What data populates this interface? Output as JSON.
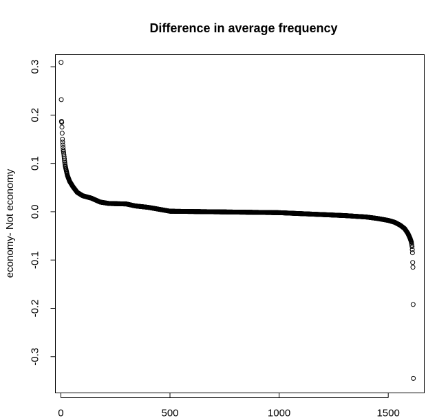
{
  "chart_data": {
    "type": "scatter",
    "title": "Difference in average frequency",
    "xlabel": "",
    "ylabel": "economy- Not economy",
    "xlim": [
      -25,
      1665
    ],
    "ylim": [
      -0.375,
      0.325
    ],
    "x_ticks": [
      0,
      500,
      1000,
      1500
    ],
    "x_tick_labels": [
      "0",
      "500",
      "1000",
      "1500"
    ],
    "y_ticks": [
      -0.3,
      -0.2,
      -0.1,
      0.0,
      0.1,
      0.2,
      0.3
    ],
    "y_tick_labels": [
      "-0.3",
      "-0.2",
      "-0.1",
      "0.0",
      "0.1",
      "0.2",
      "0.3"
    ],
    "grid": false,
    "legend": "none",
    "marker": "open-circle",
    "color": "#000000",
    "n_points": 1615,
    "notable_points": [
      {
        "x": 1,
        "y": 0.309
      },
      {
        "x": 2,
        "y": 0.232
      },
      {
        "x": 3,
        "y": 0.187
      },
      {
        "x": 4,
        "y": 0.185
      },
      {
        "x": 5,
        "y": 0.175
      },
      {
        "x": 1612,
        "y": -0.105
      },
      {
        "x": 1613,
        "y": -0.115
      },
      {
        "x": 1614,
        "y": -0.192
      },
      {
        "x": 1615,
        "y": -0.345
      }
    ],
    "curve": [
      {
        "x": 1,
        "y": 0.309
      },
      {
        "x": 2,
        "y": 0.232
      },
      {
        "x": 3,
        "y": 0.187
      },
      {
        "x": 4,
        "y": 0.185
      },
      {
        "x": 5,
        "y": 0.175
      },
      {
        "x": 7,
        "y": 0.15
      },
      {
        "x": 9,
        "y": 0.138
      },
      {
        "x": 11,
        "y": 0.128
      },
      {
        "x": 14,
        "y": 0.118
      },
      {
        "x": 17,
        "y": 0.105
      },
      {
        "x": 20,
        "y": 0.095
      },
      {
        "x": 25,
        "y": 0.085
      },
      {
        "x": 30,
        "y": 0.075
      },
      {
        "x": 40,
        "y": 0.063
      },
      {
        "x": 55,
        "y": 0.052
      },
      {
        "x": 75,
        "y": 0.04
      },
      {
        "x": 100,
        "y": 0.033
      },
      {
        "x": 140,
        "y": 0.028
      },
      {
        "x": 180,
        "y": 0.02
      },
      {
        "x": 220,
        "y": 0.017
      },
      {
        "x": 300,
        "y": 0.016
      },
      {
        "x": 340,
        "y": 0.012
      },
      {
        "x": 400,
        "y": 0.009
      },
      {
        "x": 450,
        "y": 0.005
      },
      {
        "x": 500,
        "y": 0.001
      },
      {
        "x": 1000,
        "y": -0.002
      },
      {
        "x": 1100,
        "y": -0.004
      },
      {
        "x": 1200,
        "y": -0.006
      },
      {
        "x": 1300,
        "y": -0.008
      },
      {
        "x": 1400,
        "y": -0.011
      },
      {
        "x": 1450,
        "y": -0.014
      },
      {
        "x": 1500,
        "y": -0.018
      },
      {
        "x": 1530,
        "y": -0.022
      },
      {
        "x": 1555,
        "y": -0.028
      },
      {
        "x": 1575,
        "y": -0.035
      },
      {
        "x": 1590,
        "y": -0.045
      },
      {
        "x": 1600,
        "y": -0.055
      },
      {
        "x": 1606,
        "y": -0.063
      },
      {
        "x": 1609,
        "y": -0.072
      },
      {
        "x": 1611,
        "y": -0.085
      },
      {
        "x": 1612,
        "y": -0.105
      },
      {
        "x": 1613,
        "y": -0.115
      },
      {
        "x": 1614,
        "y": -0.192
      },
      {
        "x": 1615,
        "y": -0.345
      }
    ]
  }
}
